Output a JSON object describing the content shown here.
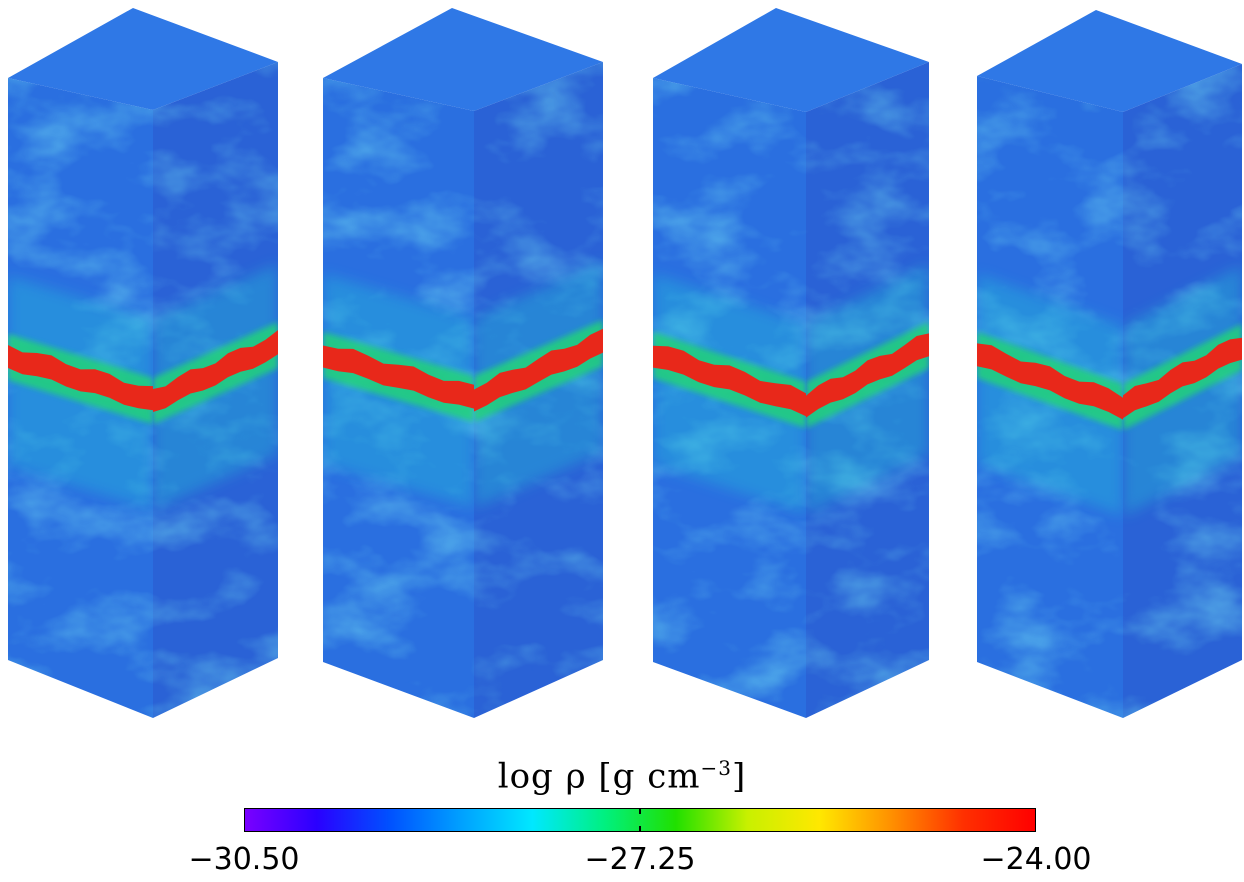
{
  "colorbar": {
    "title_prefix": "log ρ [g cm",
    "title_exp": "−3",
    "title_suffix": "]",
    "ticks": [
      "−30.50",
      "−27.25",
      "−24.00"
    ],
    "colormap": [
      "#7a00ff",
      "#2a00ff",
      "#0050ff",
      "#00a0ff",
      "#00e8ff",
      "#00f080",
      "#20e000",
      "#c8f000",
      "#ffe800",
      "#ff9000",
      "#ff3000",
      "#ff0000"
    ]
  },
  "colors": {
    "top_face": "#2f78e6",
    "left_face": "#2a6fe0",
    "right_face": "#2a62d6",
    "turbulence": "#2ec8e6",
    "band_core": "#e8281a",
    "band_halo": "#20d27a"
  },
  "boxes": [
    {
      "name": "panel-1"
    },
    {
      "name": "panel-2"
    },
    {
      "name": "panel-3"
    },
    {
      "name": "panel-4"
    }
  ]
}
